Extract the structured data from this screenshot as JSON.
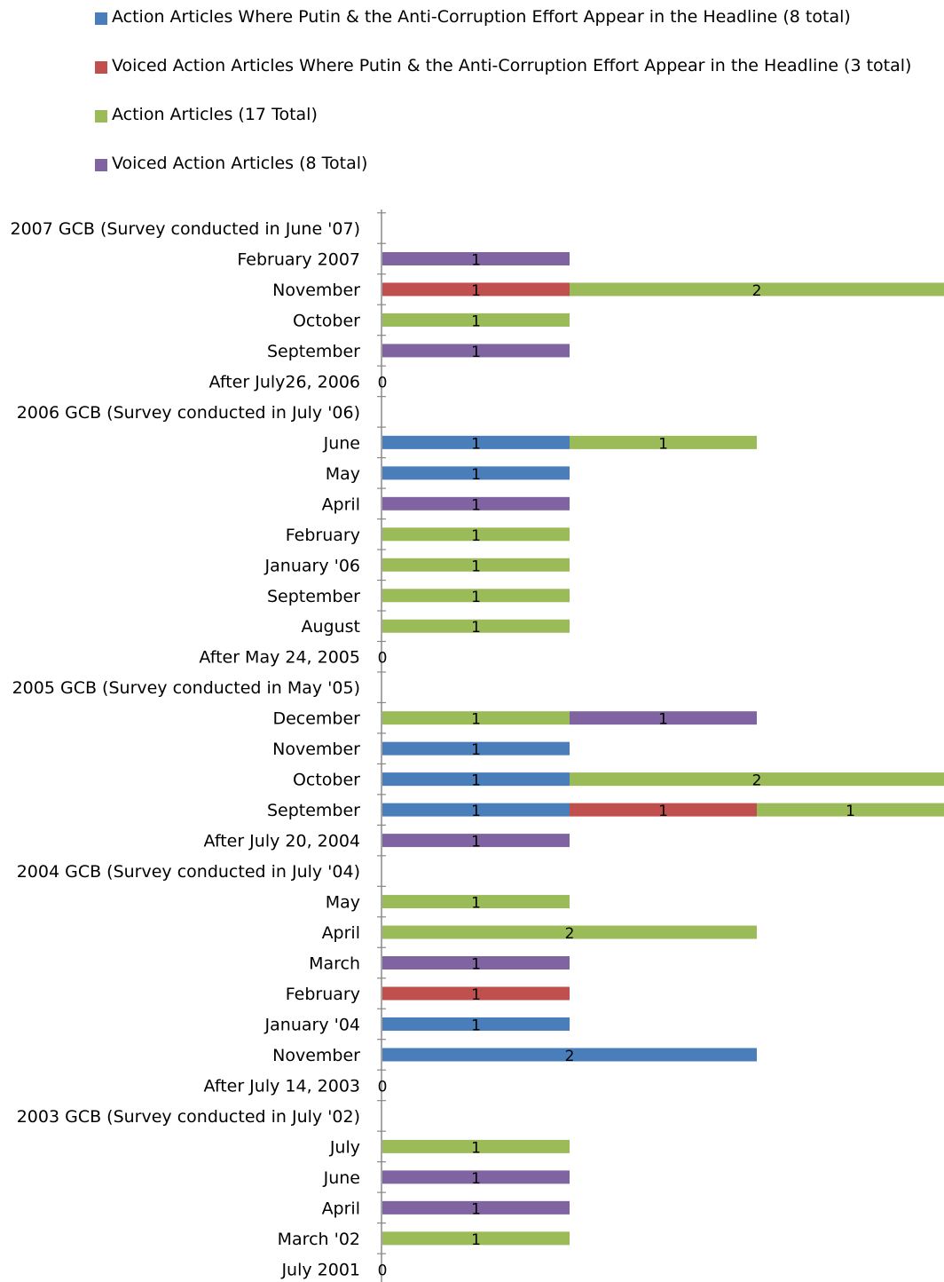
{
  "colors": {
    "blue": "#4a7ebb",
    "red": "#c0504d",
    "green": "#9bbb59",
    "purple": "#8064a2",
    "axis": "#898989"
  },
  "legend": [
    {
      "label": "Action Articles Where Putin & the Anti-Corruption Effort Appear in the Headline (8 total)",
      "color": "#4a7ebb"
    },
    {
      "label": "Voiced Action Articles Where Putin & the Anti-Corruption Effort Appear in the Headline (3 total)",
      "color": "#c0504d"
    },
    {
      "label": "Action Articles (17 Total)",
      "color": "#9bbb59"
    },
    {
      "label": "Voiced Action Articles (8 Total)",
      "color": "#8064a2"
    }
  ],
  "chart_data": {
    "type": "bar",
    "orientation": "horizontal",
    "stacked": true,
    "categories": [
      "2007 GCB (Survey conducted in June '07)",
      "February 2007",
      "November",
      "October",
      "September",
      "After July26, 2006",
      "2006 GCB (Survey conducted in July '06)",
      "June",
      "May",
      "April",
      "February",
      "January '06",
      "September",
      "August",
      "After May 24, 2005",
      "2005 GCB (Survey conducted in May '05)",
      "December",
      "November",
      "October",
      "September",
      "After July 20, 2004",
      "2004 GCB (Survey conducted in July '04)",
      "May",
      "April",
      "March",
      "February",
      "January '04",
      "November",
      "After July 14, 2003",
      "2003 GCB (Survey conducted in July '02)",
      "July",
      "June",
      "April",
      "March '02",
      "July  2001"
    ],
    "rows": [
      {
        "segments": []
      },
      {
        "segments": [
          {
            "series": 3,
            "value": 1
          }
        ]
      },
      {
        "segments": [
          {
            "series": 1,
            "value": 1
          },
          {
            "series": 2,
            "value": 2
          }
        ]
      },
      {
        "segments": [
          {
            "series": 2,
            "value": 1
          }
        ]
      },
      {
        "segments": [
          {
            "series": 3,
            "value": 1
          }
        ]
      },
      {
        "segments": [],
        "zero_label": "0"
      },
      {
        "segments": []
      },
      {
        "segments": [
          {
            "series": 0,
            "value": 1
          },
          {
            "series": 2,
            "value": 1
          }
        ]
      },
      {
        "segments": [
          {
            "series": 0,
            "value": 1
          }
        ]
      },
      {
        "segments": [
          {
            "series": 3,
            "value": 1
          }
        ]
      },
      {
        "segments": [
          {
            "series": 2,
            "value": 1
          }
        ]
      },
      {
        "segments": [
          {
            "series": 2,
            "value": 1
          }
        ]
      },
      {
        "segments": [
          {
            "series": 2,
            "value": 1
          }
        ]
      },
      {
        "segments": [
          {
            "series": 2,
            "value": 1
          }
        ]
      },
      {
        "segments": [],
        "zero_label": "0"
      },
      {
        "segments": []
      },
      {
        "segments": [
          {
            "series": 2,
            "value": 1
          },
          {
            "series": 3,
            "value": 1
          }
        ]
      },
      {
        "segments": [
          {
            "series": 0,
            "value": 1
          }
        ]
      },
      {
        "segments": [
          {
            "series": 0,
            "value": 1
          },
          {
            "series": 2,
            "value": 2
          }
        ]
      },
      {
        "segments": [
          {
            "series": 0,
            "value": 1
          },
          {
            "series": 1,
            "value": 1
          },
          {
            "series": 2,
            "value": 1
          }
        ]
      },
      {
        "segments": [
          {
            "series": 3,
            "value": 1
          }
        ]
      },
      {
        "segments": []
      },
      {
        "segments": [
          {
            "series": 2,
            "value": 1
          }
        ]
      },
      {
        "segments": [
          {
            "series": 2,
            "value": 2
          }
        ]
      },
      {
        "segments": [
          {
            "series": 3,
            "value": 1
          }
        ]
      },
      {
        "segments": [
          {
            "series": 1,
            "value": 1
          }
        ]
      },
      {
        "segments": [
          {
            "series": 0,
            "value": 1
          }
        ]
      },
      {
        "segments": [
          {
            "series": 0,
            "value": 2
          }
        ]
      },
      {
        "segments": [],
        "zero_label": "0"
      },
      {
        "segments": []
      },
      {
        "segments": [
          {
            "series": 2,
            "value": 1
          }
        ]
      },
      {
        "segments": [
          {
            "series": 3,
            "value": 1
          }
        ]
      },
      {
        "segments": [
          {
            "series": 3,
            "value": 1
          }
        ]
      },
      {
        "segments": [
          {
            "series": 2,
            "value": 1
          }
        ]
      },
      {
        "segments": [],
        "zero_label": "0"
      }
    ],
    "series": [
      {
        "name": "Action Articles Where Putin & the Anti-Corruption Effort Appear in the Headline (8 total)",
        "color": "#4a7ebb"
      },
      {
        "name": "Voiced Action Articles Where Putin & the Anti-Corruption Effort Appear in the Headline (3 total)",
        "color": "#c0504d"
      },
      {
        "name": "Action Articles (17 Total)",
        "color": "#9bbb59"
      },
      {
        "name": "Voiced Action Articles (8 Total)",
        "color": "#8064a2"
      }
    ],
    "xlim": [
      0,
      3
    ],
    "grid": false,
    "legend_position": "top"
  }
}
